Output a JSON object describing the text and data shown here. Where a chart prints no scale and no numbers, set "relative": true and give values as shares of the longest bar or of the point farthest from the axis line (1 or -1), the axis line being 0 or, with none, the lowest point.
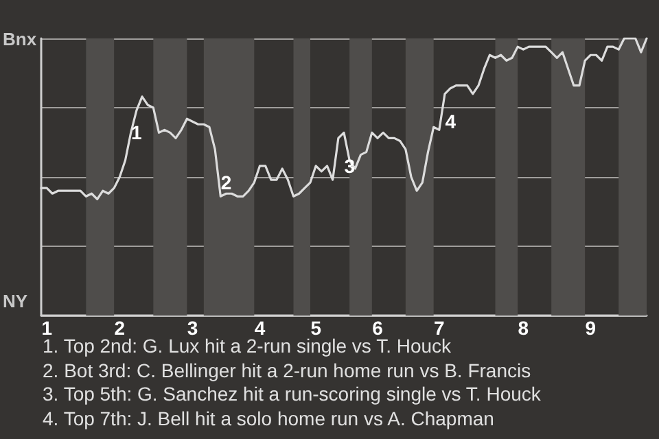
{
  "chart_data": {
    "type": "line",
    "relative": true,
    "categories": [
      null,
      "1",
      null,
      null,
      null,
      null,
      null,
      null,
      null,
      null,
      null,
      null,
      null,
      null,
      "2",
      null,
      null,
      null,
      null,
      null,
      null,
      null,
      null,
      null,
      null,
      null,
      null,
      "3",
      null,
      null,
      null,
      null,
      null,
      null,
      null,
      null,
      null,
      null,
      null,
      "4",
      null,
      null,
      null,
      null,
      null,
      null,
      null,
      null,
      null,
      "5",
      null,
      null,
      null,
      null,
      null,
      null,
      null,
      null,
      null,
      null,
      "6",
      null,
      null,
      null,
      null,
      null,
      null,
      null,
      null,
      null,
      null,
      "7",
      null,
      null,
      null,
      null,
      null,
      null,
      null,
      null,
      null,
      null,
      null,
      null,
      null,
      null,
      "8",
      null,
      null,
      null,
      null,
      null,
      null,
      null,
      null,
      null,
      null,
      null,
      "9",
      null,
      null,
      null,
      null,
      null,
      null,
      null,
      null,
      null,
      null
    ],
    "series": [
      {
        "color": "#dcdcdc",
        "values": [
          0.46,
          0.46,
          0.44,
          0.45,
          0.45,
          0.45,
          0.45,
          0.45,
          0.43,
          0.44,
          0.42,
          0.45,
          0.44,
          0.46,
          0.5,
          0.56,
          0.66,
          0.74,
          0.79,
          0.76,
          0.75,
          0.66,
          0.67,
          0.66,
          0.64,
          0.67,
          0.71,
          0.7,
          0.69,
          0.69,
          0.68,
          0.6,
          0.43,
          0.44,
          0.44,
          0.43,
          0.43,
          0.45,
          0.48,
          0.54,
          0.54,
          0.49,
          0.49,
          0.53,
          0.49,
          0.43,
          0.44,
          0.46,
          0.48,
          0.54,
          0.52,
          0.54,
          0.49,
          0.64,
          0.66,
          0.56,
          0.53,
          0.58,
          0.59,
          0.66,
          0.64,
          0.66,
          0.64,
          0.64,
          0.63,
          0.6,
          0.5,
          0.45,
          0.48,
          0.59,
          0.68,
          0.67,
          0.8,
          0.82,
          0.83,
          0.83,
          0.83,
          0.8,
          0.83,
          0.89,
          0.94,
          0.93,
          0.94,
          0.92,
          0.93,
          0.97,
          0.96,
          0.97,
          0.97,
          0.97,
          0.97,
          0.95,
          0.93,
          0.95,
          0.89,
          0.83,
          0.83,
          0.92,
          0.94,
          0.94,
          0.92,
          0.97,
          0.97,
          0.96,
          1,
          1,
          1,
          0.95,
          1
        ]
      }
    ],
    "grid": "y",
    "marker": "none",
    "annotations": [
      "Bnx",
      "NY",
      "1",
      "2",
      "3",
      "4",
      "1. Top 2nd: G. Lux hit a 2-run single vs T. Houck",
      "2. Bot 3rd: C. Bellinger hit a 2-run home run vs B. Francis",
      "3. Top 5th: G. Sanchez hit a run-scoring single vs T. Houck",
      "4. Top 7th: J. Bell hit a solo home run vs A. Chapman"
    ]
  }
}
